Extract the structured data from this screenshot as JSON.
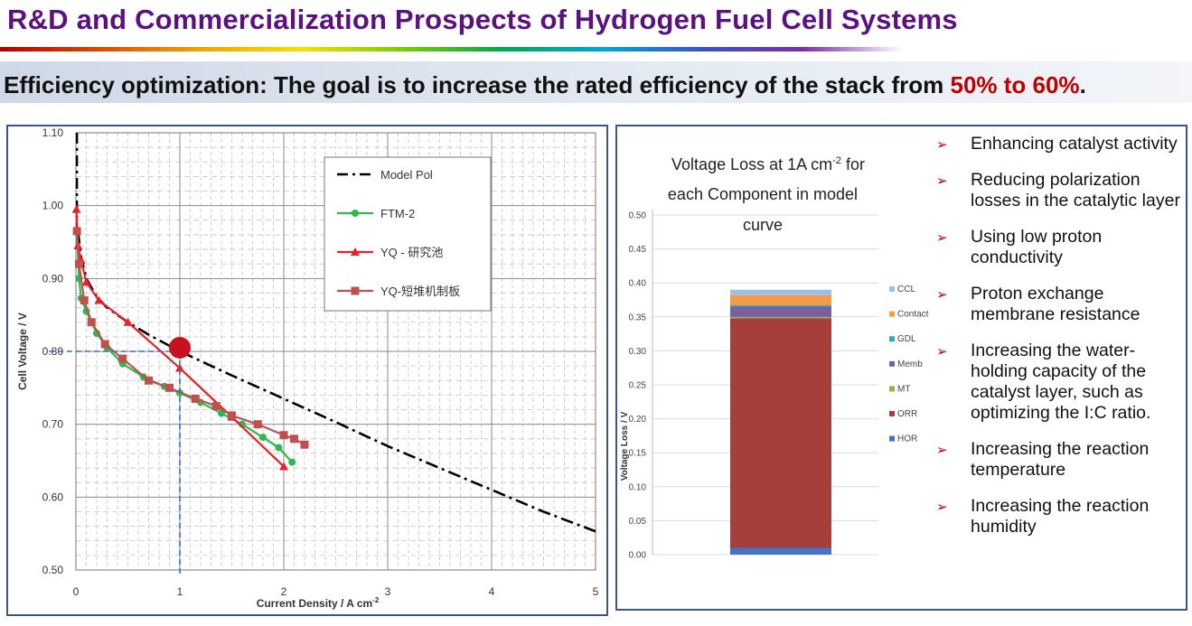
{
  "header": {
    "title": "R&D and Commercialization Prospects of Hydrogen Fuel Cell Systems",
    "subtitle_bold": "Efficiency optimization",
    "subtitle_text": ": The goal is to increase the rated efficiency of the stack from ",
    "subtitle_highlight": "50% to 60%",
    "subtitle_end": "."
  },
  "chart_data": [
    {
      "type": "line",
      "xlabel": "Current Density / A cm",
      "xlabel_sup": "-2",
      "ylabel": "Cell Voltage / V",
      "xlim": [
        0,
        5
      ],
      "ylim": [
        0.5,
        1.1
      ],
      "xticks": [
        "0",
        "1",
        "2",
        "3",
        "4",
        "5"
      ],
      "yticks": [
        "0.50",
        "0.60",
        "0.70",
        "0.80",
        "0.90",
        "1.00",
        "1.10"
      ],
      "grid": true,
      "legend_position": "top-right",
      "series": [
        {
          "name": "Model Pol",
          "color": "#000000",
          "x": [
            0.02,
            0.05,
            0.1,
            0.2,
            0.3,
            0.5,
            0.7,
            1.0,
            1.5,
            2.0,
            2.5,
            3.0,
            3.5,
            4.0,
            4.5,
            5.0
          ],
          "y": [
            0.965,
            0.93,
            0.9,
            0.875,
            0.86,
            0.84,
            0.823,
            0.8,
            0.767,
            0.735,
            0.703,
            0.67,
            0.64,
            0.61,
            0.58,
            0.553
          ]
        },
        {
          "name": "FTM-2",
          "color": "#2fb84f",
          "x": [
            0.01,
            0.03,
            0.05,
            0.1,
            0.2,
            0.3,
            0.45,
            0.65,
            0.85,
            1.0,
            1.2,
            1.4,
            1.6,
            1.8,
            1.95,
            2.08
          ],
          "y": [
            0.965,
            0.9,
            0.873,
            0.855,
            0.825,
            0.805,
            0.783,
            0.765,
            0.752,
            0.743,
            0.73,
            0.715,
            0.7,
            0.682,
            0.668,
            0.648
          ]
        },
        {
          "name": "YQ - 研究池",
          "color": "#e8202a",
          "x": [
            0.005,
            0.02,
            0.05,
            0.1,
            0.22,
            0.5,
            1.0,
            1.5,
            2.0
          ],
          "y": [
            0.995,
            0.945,
            0.925,
            0.895,
            0.87,
            0.84,
            0.777,
            0.71,
            0.642
          ]
        },
        {
          "name": "YQ-短堆机制板",
          "color": "#c0504d",
          "x": [
            0.01,
            0.03,
            0.08,
            0.15,
            0.28,
            0.45,
            0.7,
            0.9,
            1.15,
            1.35,
            1.5,
            1.75,
            2.0,
            2.1,
            2.2
          ],
          "y": [
            0.965,
            0.92,
            0.87,
            0.84,
            0.81,
            0.79,
            0.76,
            0.75,
            0.735,
            0.725,
            0.712,
            0.7,
            0.685,
            0.68,
            0.672
          ]
        }
      ],
      "operating_point": {
        "x": 1.0,
        "y": 0.805
      }
    },
    {
      "type": "bar",
      "stacked": true,
      "title_line1": "Voltage Loss at 1A cm",
      "title_sup": "-2",
      "title_line1_end": " for",
      "title_line2": "each Component in model",
      "title_line3": "curve",
      "ylabel": "Voltage Loss / V",
      "ylim": [
        0,
        0.5
      ],
      "yticks": [
        "0.00",
        "0.05",
        "0.10",
        "0.15",
        "0.20",
        "0.25",
        "0.30",
        "0.35",
        "0.40",
        "0.45",
        "0.50"
      ],
      "grid": true,
      "legend_position": "right",
      "series": [
        {
          "name": "HOR",
          "color": "#4472c4",
          "value": 0.01
        },
        {
          "name": "ORR",
          "color": "#a53f3b",
          "value": 0.338
        },
        {
          "name": "MT",
          "color": "#8fb347",
          "value": 0.002
        },
        {
          "name": "Memb",
          "color": "#7a5fa0",
          "value": 0.015
        },
        {
          "name": "GDL",
          "color": "#3ba5bf",
          "value": 0.002
        },
        {
          "name": "Contact",
          "color": "#f29b4a",
          "value": 0.015
        },
        {
          "name": "CCL",
          "color": "#9cbfe6",
          "value": 0.008
        }
      ]
    }
  ],
  "bullets": [
    "Enhancing catalyst activity",
    "Reducing polarization losses in the catalytic layer",
    "Using low proton conductivity",
    "Proton exchange membrane resistance",
    "Increasing the water-holding capacity of the catalyst layer, such as optimizing the I:C ratio.",
    "Increasing the reaction temperature",
    "Increasing the reaction humidity"
  ],
  "bullet_symbol": "➢"
}
